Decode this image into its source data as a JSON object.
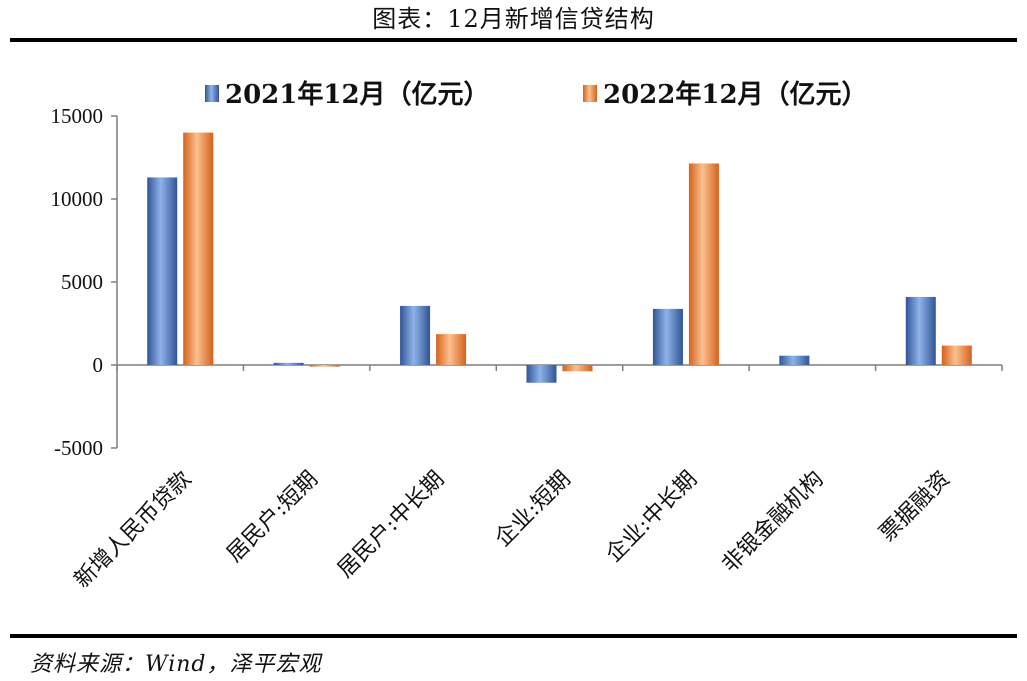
{
  "header": {
    "title": "图表：12月新增信贷结构"
  },
  "footer": {
    "source": "资料来源：Wind，泽平宏观"
  },
  "colors": {
    "series_2021": "#4472C4",
    "series_2022": "#ED7D31"
  },
  "chart_data": {
    "type": "bar",
    "title": "",
    "xlabel": "",
    "ylabel": "",
    "categories": [
      "新增人民币贷款",
      "居民户:短期",
      "居民户:中长期",
      "企业:短期",
      "企业:中长期",
      "非银金融机构",
      "票据融资"
    ],
    "series": [
      {
        "name": "2021年12月（亿元）",
        "values": [
          11300,
          130,
          3560,
          -1070,
          3380,
          560,
          4100
        ]
      },
      {
        "name": "2022年12月（亿元）",
        "values": [
          14000,
          -100,
          1860,
          -380,
          12140,
          0,
          1170
        ]
      }
    ],
    "ylim": [
      -5000,
      15000
    ],
    "yticks": [
      -5000,
      0,
      5000,
      10000,
      15000
    ],
    "ytick_labels": [
      "-5000",
      "0",
      "5000",
      "10000",
      "15000"
    ],
    "legend_position": "top",
    "grid": false
  }
}
